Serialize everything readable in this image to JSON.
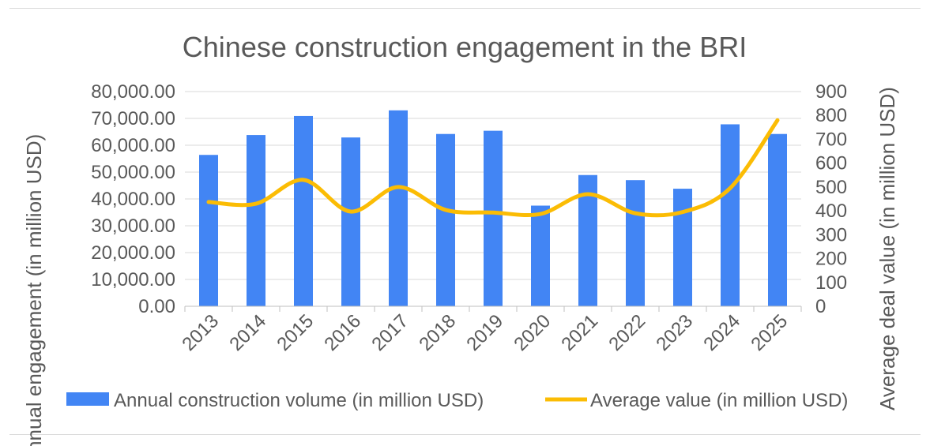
{
  "chart_data": {
    "type": "bar",
    "title": "Chinese construction engagement in the BRI",
    "categories": [
      "2013",
      "2014",
      "2015",
      "2016",
      "2017",
      "2018",
      "2019",
      "2020",
      "2021",
      "2022",
      "2023",
      "2024",
      "2025"
    ],
    "series": [
      {
        "name": "Annual construction volume (in million USD)",
        "type": "bar",
        "axis": "left",
        "color": "#4285f4",
        "values": [
          56400,
          63800,
          70900,
          62900,
          73000,
          64200,
          65400,
          37500,
          48900,
          47000,
          43800,
          67800,
          64200
        ]
      },
      {
        "name": "Average value (in million USD)",
        "type": "line",
        "axis": "right",
        "color": "#fbbc04",
        "values": [
          437,
          430,
          530,
          397,
          500,
          404,
          393,
          387,
          470,
          390,
          395,
          495,
          780
        ]
      }
    ],
    "ylabel": "Annual engagement (in million USD)",
    "y2label": "Average deal value (in million USD)",
    "ylim": [
      0,
      80000
    ],
    "y2lim": [
      0,
      900
    ],
    "yticks": [
      "0.00",
      "10,000.00",
      "20,000.00",
      "30,000.00",
      "40,000.00",
      "50,000.00",
      "60,000.00",
      "70,000.00",
      "80,000.00"
    ],
    "y2ticks": [
      "0",
      "100",
      "200",
      "300",
      "400",
      "500",
      "600",
      "700",
      "800",
      "900"
    ],
    "grid": true,
    "legend": "bottom"
  }
}
